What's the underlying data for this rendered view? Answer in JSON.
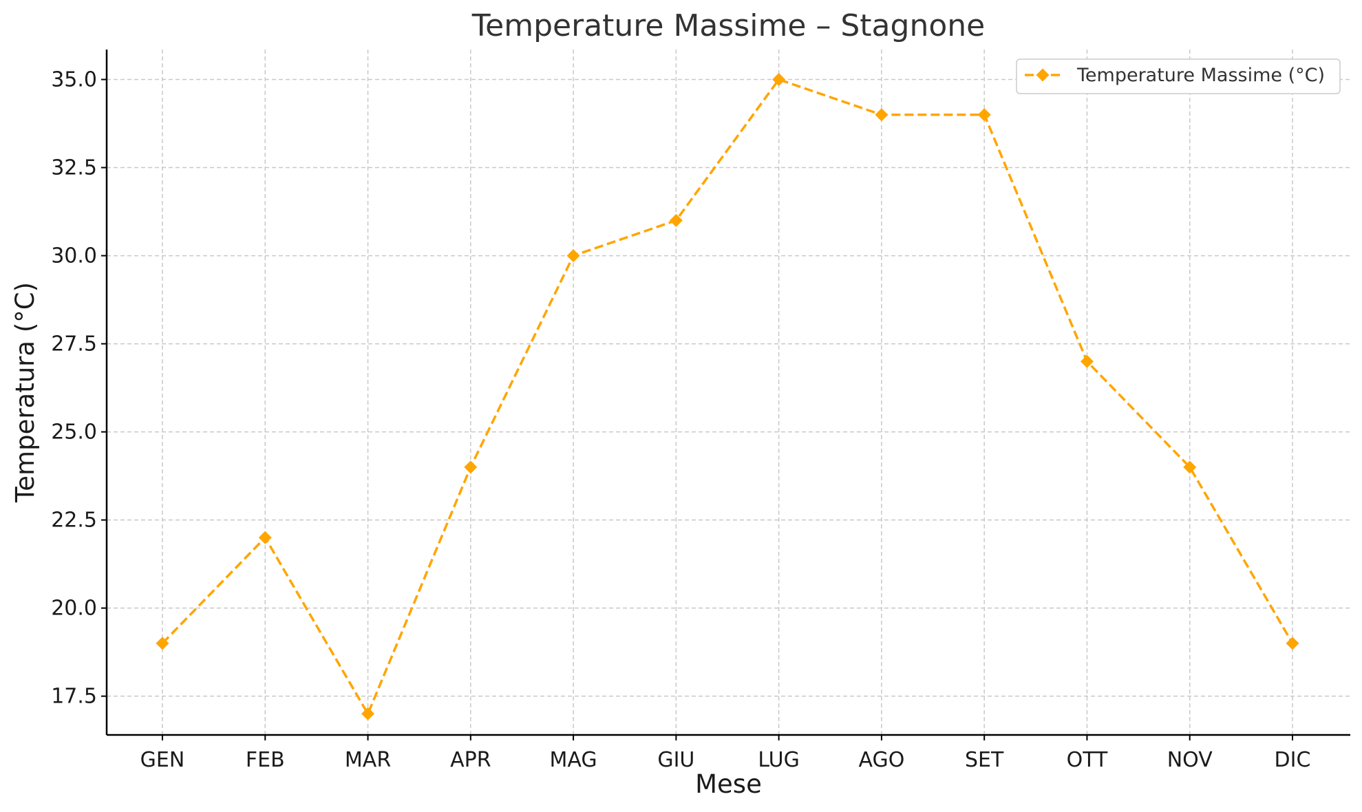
{
  "chart_data": {
    "type": "line",
    "title": "Temperature Massime – Stagnone",
    "xlabel": "Mese",
    "ylabel": "Temperatura (°C)",
    "categories": [
      "GEN",
      "FEB",
      "MAR",
      "APR",
      "MAG",
      "GIU",
      "LUG",
      "AGO",
      "SET",
      "OTT",
      "NOV",
      "DIC"
    ],
    "series": [
      {
        "name": "Temperature Massime (°C)",
        "values": [
          19,
          22,
          17,
          24,
          30,
          31,
          35,
          34,
          34,
          27,
          24,
          19
        ],
        "color": "#FFA500",
        "line_style": "dashed",
        "marker": "diamond"
      }
    ],
    "ylim": [
      16.4,
      35.85
    ],
    "yticks": [
      "17.5",
      "20.0",
      "22.5",
      "25.0",
      "27.5",
      "30.0",
      "32.5",
      "35.0"
    ],
    "grid": true,
    "legend_position": "top-right"
  }
}
